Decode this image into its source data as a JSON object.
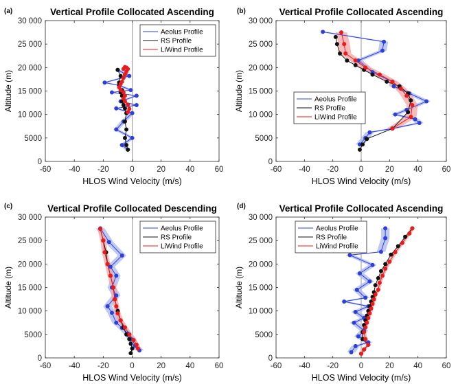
{
  "colors": {
    "aeolus": "#2e3fd8",
    "aeolus_band": "#aab7f0",
    "rs": "#111111",
    "liwind": "#e81c1c",
    "liwind_band": "#f4a4a4"
  },
  "chart_data": [
    {
      "panel_label": "(a)",
      "type": "line",
      "title": "Vertical Profile Collocated Ascending",
      "xlabel": "HLOS Wind Velocity (m/s)",
      "ylabel": "Altitude (m)",
      "xlim": [
        -60,
        60
      ],
      "ylim": [
        0,
        30000
      ],
      "xticks": [
        "-60",
        "-40",
        "-20",
        "0",
        "20",
        "40",
        "60"
      ],
      "yticks": [
        "0",
        "5000",
        "10 000",
        "15 000",
        "20 000",
        "25 000",
        "30 000"
      ],
      "legend": [
        "Aeolus Profile",
        "RS Profile",
        "LiWind Profile"
      ],
      "legend_position": "top-right",
      "grid": false,
      "series": [
        {
          "name": "Aeolus Profile",
          "band": 2,
          "x": [
            -3,
            -7,
            0,
            -11,
            -6,
            0,
            -11,
            3,
            -8,
            3,
            -14,
            -1,
            -9,
            -19,
            -2,
            -10
          ],
          "y": [
            2500,
            3500,
            5000,
            6800,
            8500,
            10300,
            11300,
            12000,
            12800,
            14000,
            14700,
            15200,
            16200,
            16800,
            18200,
            19500
          ]
        },
        {
          "name": "RS Profile",
          "x": [
            -3,
            -4,
            -5,
            -4,
            -5,
            -4,
            -5,
            -6,
            -7,
            -7,
            -8,
            -7,
            -9,
            -9,
            -8,
            -10
          ],
          "y": [
            2500,
            3500,
            5000,
            6800,
            8500,
            10300,
            11300,
            12000,
            12800,
            14000,
            14700,
            15200,
            16200,
            16800,
            18200,
            19500
          ]
        },
        {
          "name": "LiWind Profile",
          "band": 1,
          "x": [
            -3,
            -2,
            -3,
            -5,
            -6,
            -5,
            -6,
            -8,
            -9,
            -8,
            -7,
            -6,
            -5,
            -4,
            -3,
            -5,
            -6,
            -4
          ],
          "y": [
            10500,
            11200,
            12100,
            12800,
            13400,
            14000,
            14700,
            15200,
            15800,
            16500,
            17000,
            17800,
            18500,
            19100,
            19700,
            20100,
            19700,
            20000
          ]
        }
      ]
    },
    {
      "panel_label": "(b)",
      "type": "line",
      "title": "Vertical Profile Collocated Ascending",
      "xlabel": "HLOS Wind Velocity (m/s)",
      "ylabel": "Altitude (m)",
      "xlim": [
        -60,
        60
      ],
      "ylim": [
        0,
        30000
      ],
      "xticks": [
        "-60",
        "-40",
        "-20",
        "0",
        "20",
        "40",
        "60"
      ],
      "yticks": [
        "0",
        "5000",
        "10 000",
        "15 000",
        "20 000",
        "25 000",
        "30 000"
      ],
      "legend": [
        "Aeolus Profile",
        "RS Profile",
        "LiWind Profile"
      ],
      "legend_position": "center-left",
      "grid": false,
      "series": [
        {
          "name": "Aeolus Profile",
          "band": 3,
          "x": [
            -27,
            16,
            15,
            -2,
            8,
            22,
            23,
            34,
            46,
            32,
            24,
            38,
            41,
            22,
            6,
            3,
            -1
          ],
          "y": [
            27600,
            25500,
            23600,
            21500,
            19000,
            17000,
            16000,
            14500,
            12800,
            11000,
            10000,
            9000,
            8200,
            7000,
            6200,
            5000,
            3600
          ]
        },
        {
          "name": "RS Profile",
          "x": [
            -18,
            -17,
            -15,
            -10,
            -4,
            2,
            8,
            18,
            27,
            33,
            35,
            33,
            22,
            4,
            1,
            -1
          ],
          "y": [
            26500,
            25000,
            23000,
            21500,
            20500,
            19500,
            18500,
            17000,
            16000,
            14500,
            13000,
            10500,
            7000,
            4800,
            3600,
            2500
          ]
        },
        {
          "name": "LiWind Profile",
          "band": 4,
          "x": [
            -14,
            -12,
            -11,
            -4,
            3,
            13,
            22,
            28,
            32,
            36,
            35,
            22
          ],
          "y": [
            27500,
            25000,
            23000,
            21500,
            20000,
            18500,
            17000,
            15500,
            14000,
            12000,
            9500,
            7000
          ]
        }
      ]
    },
    {
      "panel_label": "(c)",
      "type": "line",
      "title": "Vertical Profile Collocated Descending",
      "xlabel": "HLOS Wind Velocity (m/s)",
      "ylabel": "Altitude (m)",
      "xlim": [
        -60,
        60
      ],
      "ylim": [
        0,
        30000
      ],
      "xticks": [
        "-60",
        "-40",
        "-20",
        "0",
        "20",
        "40",
        "60"
      ],
      "yticks": [
        "0",
        "5000",
        "10 000",
        "15 000",
        "20 000",
        "25 000",
        "30 000"
      ],
      "legend": [
        "Aeolus Profile",
        "RS Profile",
        "LiWind Profile"
      ],
      "legend_position": "top-right",
      "grid": false,
      "series": [
        {
          "name": "Aeolus Profile",
          "band": 3,
          "x": [
            -22,
            -16,
            -7,
            -15,
            -11,
            -14,
            -11,
            -17,
            -14,
            -11,
            -7,
            -3,
            0,
            2,
            5
          ],
          "y": [
            27600,
            24700,
            21800,
            19400,
            17500,
            15000,
            13300,
            11000,
            9600,
            7500,
            6400,
            5200,
            3900,
            2600,
            1600
          ]
        },
        {
          "name": "RS Profile",
          "x": [
            -22,
            -20,
            -18,
            -17,
            -15,
            -13,
            -12,
            -10,
            -8,
            -6,
            -4,
            -2,
            -1,
            0,
            -1
          ],
          "y": [
            27500,
            25000,
            22500,
            20000,
            17500,
            15000,
            12500,
            10000,
            8000,
            6500,
            5000,
            4000,
            3000,
            2000,
            1000
          ]
        },
        {
          "name": "LiWind Profile",
          "band": 2,
          "x": [
            -22,
            -20,
            -19,
            -17,
            -15,
            -13,
            -12,
            -11,
            -10,
            -8,
            -5,
            -2,
            1,
            3,
            4
          ],
          "y": [
            27500,
            25000,
            22500,
            20000,
            17500,
            15000,
            12500,
            11000,
            9500,
            8000,
            6500,
            5000,
            3800,
            2800,
            2000
          ]
        }
      ]
    },
    {
      "panel_label": "(d)",
      "type": "line",
      "title": "Vertical Profile Collocated Ascending",
      "xlabel": "HLOS Wind Velocity (m/s)",
      "ylabel": "Altitude (m)",
      "xlim": [
        -60,
        60
      ],
      "ylim": [
        0,
        30000
      ],
      "xticks": [
        "-60",
        "-40",
        "-20",
        "0",
        "20",
        "40",
        "60"
      ],
      "yticks": [
        "0",
        "5000",
        "10 000",
        "15 000",
        "20 000",
        "25 000",
        "30 000"
      ],
      "legend": [
        "Aeolus Profile",
        "RS Profile",
        "LiWind Profile"
      ],
      "legend_position": "top-left",
      "grid": false,
      "series": [
        {
          "name": "Aeolus Profile",
          "band": 3,
          "x": [
            17,
            17,
            14,
            -8,
            8,
            -1,
            6,
            -3,
            3,
            -12,
            5,
            -4,
            2,
            -5,
            2,
            -2,
            5,
            -4,
            -7
          ],
          "y": [
            27600,
            25500,
            22600,
            21900,
            19800,
            18000,
            16300,
            14500,
            12800,
            12000,
            11000,
            9800,
            8500,
            7500,
            5800,
            4600,
            3300,
            2500,
            1200
          ]
        },
        {
          "name": "RS Profile",
          "x": [
            36,
            31,
            26,
            21,
            17,
            14,
            12,
            10,
            9,
            8,
            7,
            6,
            5,
            4,
            3,
            2,
            1,
            1,
            5,
            2,
            0
          ],
          "y": [
            27600,
            25800,
            23800,
            22000,
            20000,
            18500,
            17000,
            15500,
            14000,
            13000,
            12000,
            11000,
            10000,
            9000,
            8000,
            7000,
            5500,
            4000,
            2800,
            1800,
            900
          ]
        },
        {
          "name": "LiWind Profile",
          "band": 1.5,
          "x": [
            36,
            34,
            29,
            24,
            20,
            17,
            15,
            13,
            12,
            10,
            9,
            8,
            7,
            6,
            5,
            4,
            3,
            2,
            3,
            5,
            2,
            0
          ],
          "y": [
            27600,
            26500,
            24500,
            22500,
            20500,
            19000,
            17500,
            16000,
            14500,
            13500,
            12500,
            11500,
            10500,
            9500,
            8500,
            7500,
            6500,
            5500,
            4000,
            2800,
            1800,
            900
          ]
        }
      ]
    }
  ]
}
